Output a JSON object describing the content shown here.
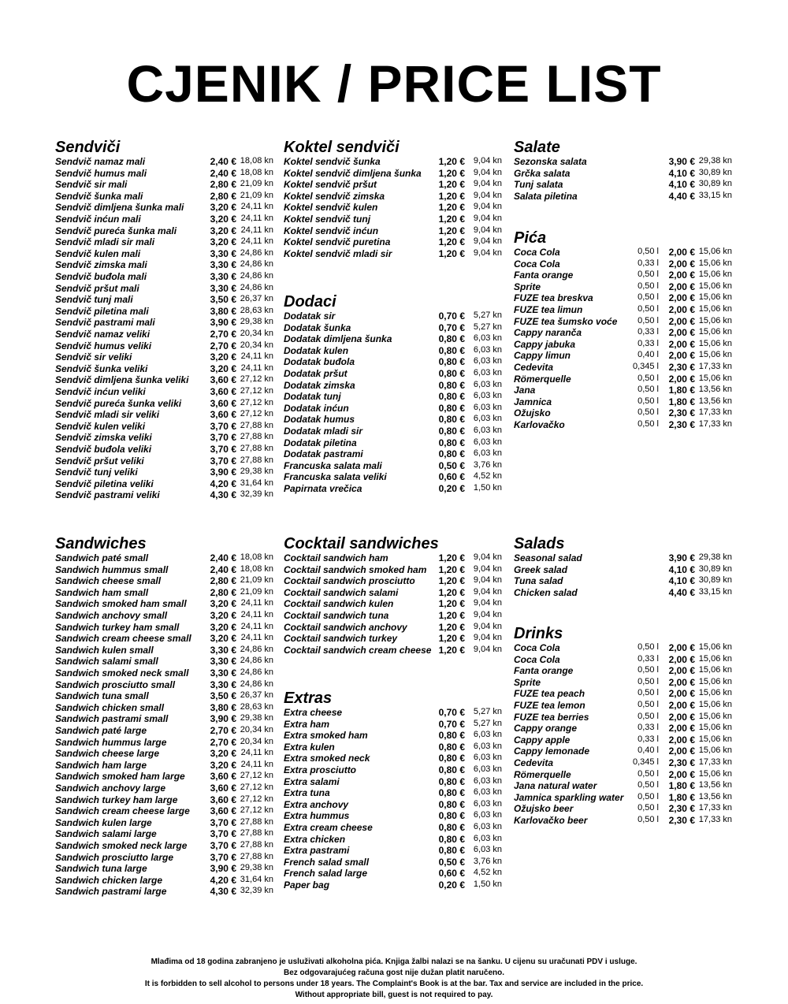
{
  "header": {
    "title": "CJENIK / PRICE LIST"
  },
  "sections": [
    {
      "title": "Sendviči",
      "items": [
        [
          "Sendvič namaz mali",
          "2,40 €",
          "18,08 kn"
        ],
        [
          "Sendvič humus mali",
          "2,40 €",
          "18,08 kn"
        ],
        [
          "Sendvič sir mali",
          "2,80 €",
          "21,09 kn"
        ],
        [
          "Sendvič šunka mali",
          "2,80 €",
          "21,09 kn"
        ],
        [
          "Sendvič dimljena šunka mali",
          "3,20 €",
          "24,11 kn"
        ],
        [
          "Sendvič inćun mali",
          "3,20 €",
          "24,11 kn"
        ],
        [
          "Sendvič pureća šunka mali",
          "3,20 €",
          "24,11 kn"
        ],
        [
          "Sendvič mladi sir mali",
          "3,20 €",
          "24,11 kn"
        ],
        [
          "Sendvič kulen mali",
          "3,30 €",
          "24,86 kn"
        ],
        [
          "Sendvič zimska mali",
          "3,30 €",
          "24,86 kn"
        ],
        [
          "Sendvič buđola mali",
          "3,30 €",
          "24,86 kn"
        ],
        [
          "Sendvič pršut mali",
          "3,30 €",
          "24,86 kn"
        ],
        [
          "Sendvič tunj mali",
          "3,50 €",
          "26,37 kn"
        ],
        [
          "Sendvič piletina mali",
          "3,80 €",
          "28,63 kn"
        ],
        [
          "Sendvič pastrami mali",
          "3,90 €",
          "29,38 kn"
        ],
        [
          "Sendvič namaz veliki",
          "2,70 €",
          "20,34 kn"
        ],
        [
          "Sendvič humus veliki",
          "2,70 €",
          "20,34 kn"
        ],
        [
          "Sendvič sir veliki",
          "3,20 €",
          "24,11 kn"
        ],
        [
          "Sendvič šunka veliki",
          "3,20 €",
          "24,11 kn"
        ],
        [
          "Sendvič dimljena šunka veliki",
          "3,60 €",
          "27,12 kn"
        ],
        [
          "Sendvič inćun veliki",
          "3,60 €",
          "27,12 kn"
        ],
        [
          "Sendvič pureća šunka veliki",
          "3,60 €",
          "27,12 kn"
        ],
        [
          "Sendvič mladi sir veliki",
          "3,60 €",
          "27,12 kn"
        ],
        [
          "Sendvič kulen veliki",
          "3,70 €",
          "27,88 kn"
        ],
        [
          "Sendvič zimska veliki",
          "3,70 €",
          "27,88 kn"
        ],
        [
          "Sendvič buđola veliki",
          "3,70 €",
          "27,88 kn"
        ],
        [
          "Sendvič pršut veliki",
          "3,70 €",
          "27,88 kn"
        ],
        [
          "Sendvič tunj veliki",
          "3,90 €",
          "29,38 kn"
        ],
        [
          "Sendvič piletina veliki",
          "4,20 €",
          "31,64 kn"
        ],
        [
          "Sendvič pastrami veliki",
          "4,30 €",
          "32,39 kn"
        ]
      ]
    },
    {
      "title": "Koktel sendviči",
      "items": [
        [
          "Koktel sendvič šunka",
          "1,20 €",
          "9,04 kn"
        ],
        [
          "Koktel sendvič dimljena šunka",
          "1,20 €",
          "9,04 kn"
        ],
        [
          "Koktel sendvič pršut",
          "1,20 €",
          "9,04 kn"
        ],
        [
          "Koktel sendvič zimska",
          "1,20 €",
          "9,04 kn"
        ],
        [
          "Koktel sendvič kulen",
          "1,20 €",
          "9,04 kn"
        ],
        [
          "Koktel sendvič tunj",
          "1,20 €",
          "9,04 kn"
        ],
        [
          "Koktel sendvič inćun",
          "1,20 €",
          "9,04 kn"
        ],
        [
          "Koktel sendvič puretina",
          "1,20 €",
          "9,04 kn"
        ],
        [
          "Koktel sendvič mladi sir",
          "1,20 €",
          "9,04 kn"
        ]
      ]
    },
    {
      "title": "Dodaci",
      "items": [
        [
          "Dodatak sir",
          "0,70 €",
          "5,27 kn"
        ],
        [
          "Dodatak šunka",
          "0,70 €",
          "5,27 kn"
        ],
        [
          "Dodatak dimljena šunka",
          "0,80 €",
          "6,03 kn"
        ],
        [
          "Dodatak kulen",
          "0,80 €",
          "6,03 kn"
        ],
        [
          "Dodatak buđola",
          "0,80 €",
          "6,03 kn"
        ],
        [
          "Dodatak pršut",
          "0,80 €",
          "6,03 kn"
        ],
        [
          "Dodatak zimska",
          "0,80 €",
          "6,03 kn"
        ],
        [
          "Dodatak tunj",
          "0,80 €",
          "6,03 kn"
        ],
        [
          "Dodatak inćun",
          "0,80 €",
          "6,03 kn"
        ],
        [
          "Dodatak humus",
          "0,80 €",
          "6,03 kn"
        ],
        [
          "Dodatak mladi sir",
          "0,80 €",
          "6,03 kn"
        ],
        [
          "Dodatak piletina",
          "0,80 €",
          "6,03 kn"
        ],
        [
          "Dodatak pastrami",
          "0,80 €",
          "6,03 kn"
        ],
        [
          "Francuska salata mali",
          "0,50 €",
          "3,76 kn"
        ],
        [
          "Francuska salata veliki",
          "0,60 €",
          "4,52 kn"
        ],
        [
          "Papirnata vrečica",
          "0,20 €",
          "1,50 kn"
        ]
      ]
    },
    {
      "title": "Salate",
      "items": [
        [
          "Sezonska salata",
          "3,90 €",
          "29,38 kn"
        ],
        [
          "Grčka salata",
          "4,10 €",
          "30,89 kn"
        ],
        [
          "Tunj salata",
          "4,10 €",
          "30,89 kn"
        ],
        [
          "Salata piletina",
          "4,40 €",
          "33,15 kn"
        ]
      ]
    },
    {
      "title": "Pića",
      "items": [
        [
          "Coca Cola",
          "0,50 l",
          "2,00 €",
          "15,06 kn"
        ],
        [
          "Coca Cola",
          "0,33 l",
          "2,00 €",
          "15,06 kn"
        ],
        [
          "Fanta orange",
          "0,50 l",
          "2,00 €",
          "15,06 kn"
        ],
        [
          "Sprite",
          "0,50 l",
          "2,00 €",
          "15,06 kn"
        ],
        [
          "FUZE tea breskva",
          "0,50 l",
          "2,00 €",
          "15,06 kn"
        ],
        [
          "FUZE tea limun",
          "0,50 l",
          "2,00 €",
          "15,06 kn"
        ],
        [
          "FUZE tea šumsko voće",
          "0,50 l",
          "2,00 €",
          "15,06 kn"
        ],
        [
          "Cappy naranča",
          "0,33 l",
          "2,00 €",
          "15,06 kn"
        ],
        [
          "Cappy jabuka",
          "0,33 l",
          "2,00 €",
          "15,06 kn"
        ],
        [
          "Cappy limun",
          "0,40 l",
          "2,00 €",
          "15,06 kn"
        ],
        [
          "Cedevita",
          "0,345 l",
          "2,30 €",
          "17,33 kn"
        ],
        [
          "Römerquelle",
          "0,50 l",
          "2,00 €",
          "15,06 kn"
        ],
        [
          "Jana",
          "0,50 l",
          "1,80 €",
          "13,56 kn"
        ],
        [
          "Jamnica",
          "0,50 l",
          "1,80 €",
          "13,56 kn"
        ],
        [
          "Ožujsko",
          "0,50 l",
          "2,30 €",
          "17,33 kn"
        ],
        [
          "Karlovačko",
          "0,50 l",
          "2,30 €",
          "17,33 kn"
        ]
      ]
    },
    {
      "title": "Sandwiches",
      "items": [
        [
          "Sandwich paté small",
          "2,40 €",
          "18,08 kn"
        ],
        [
          "Sandwich hummus small",
          "2,40 €",
          "18,08 kn"
        ],
        [
          "Sandwich cheese small",
          "2,80 €",
          "21,09 kn"
        ],
        [
          "Sandwich ham small",
          "2,80 €",
          "21,09 kn"
        ],
        [
          "Sandwich smoked ham small",
          "3,20 €",
          "24,11 kn"
        ],
        [
          "Sandwich anchovy small",
          "3,20 €",
          "24,11 kn"
        ],
        [
          "Sandwich turkey ham small",
          "3,20 €",
          "24,11 kn"
        ],
        [
          "Sandwich cream cheese small",
          "3,20 €",
          "24,11 kn"
        ],
        [
          "Sandwich kulen small",
          "3,30 €",
          "24,86 kn"
        ],
        [
          "Sandwich salami small",
          "3,30 €",
          "24,86 kn"
        ],
        [
          "Sandwich smoked neck small",
          "3,30 €",
          "24,86 kn"
        ],
        [
          "Sandwich prosciutto small",
          "3,30 €",
          "24,86 kn"
        ],
        [
          "Sandwich tuna small",
          "3,50 €",
          "26,37 kn"
        ],
        [
          "Sandwich chicken small",
          "3,80 €",
          "28,63 kn"
        ],
        [
          "Sandwich pastrami small",
          "3,90 €",
          "29,38 kn"
        ],
        [
          "Sandwich paté large",
          "2,70 €",
          "20,34 kn"
        ],
        [
          "Sandwich hummus large",
          "2,70 €",
          "20,34 kn"
        ],
        [
          "Sandwich cheese large",
          "3,20 €",
          "24,11 kn"
        ],
        [
          "Sandwich ham large",
          "3,20 €",
          "24,11 kn"
        ],
        [
          "Sandwich smoked ham large",
          "3,60 €",
          "27,12 kn"
        ],
        [
          "Sandwich anchovy large",
          "3,60 €",
          "27,12 kn"
        ],
        [
          "Sandwich turkey ham large",
          "3,60 €",
          "27,12 kn"
        ],
        [
          "Sandwich cream cheese large",
          "3,60 €",
          "27,12 kn"
        ],
        [
          "Sandwich kulen large",
          "3,70 €",
          "27,88 kn"
        ],
        [
          "Sandwich salami large",
          "3,70 €",
          "27,88 kn"
        ],
        [
          "Sandwich smoked neck large",
          "3,70 €",
          "27,88 kn"
        ],
        [
          "Sandwich prosciutto large",
          "3,70 €",
          "27,88 kn"
        ],
        [
          "Sandwich tuna large",
          "3,90 €",
          "29,38 kn"
        ],
        [
          "Sandwich chicken large",
          "4,20 €",
          "31,64 kn"
        ],
        [
          "Sandwich pastrami large",
          "4,30 €",
          "32,39 kn"
        ]
      ]
    },
    {
      "title": "Cocktail sandwiches",
      "items": [
        [
          "Cocktail sandwich ham",
          "1,20 €",
          "9,04 kn"
        ],
        [
          "Cocktail sandwich smoked ham",
          "1,20 €",
          "9,04 kn"
        ],
        [
          "Cocktail sandwich prosciutto",
          "1,20 €",
          "9,04 kn"
        ],
        [
          "Cocktail sandwich salami",
          "1,20 €",
          "9,04 kn"
        ],
        [
          "Cocktail sandwich kulen",
          "1,20 €",
          "9,04 kn"
        ],
        [
          "Cocktail sandwich tuna",
          "1,20 €",
          "9,04 kn"
        ],
        [
          "Cocktail sandwich anchovy",
          "1,20 €",
          "9,04 kn"
        ],
        [
          "Cocktail sandwich turkey",
          "1,20 €",
          "9,04 kn"
        ],
        [
          "Cocktail sandwich cream cheese",
          "1,20 €",
          "9,04 kn"
        ]
      ]
    },
    {
      "title": "Extras",
      "items": [
        [
          "Extra cheese",
          "0,70 €",
          "5,27 kn"
        ],
        [
          "Extra ham",
          "0,70 €",
          "5,27 kn"
        ],
        [
          "Extra smoked ham",
          "0,80 €",
          "6,03 kn"
        ],
        [
          "Extra kulen",
          "0,80 €",
          "6,03 kn"
        ],
        [
          "Extra smoked neck",
          "0,80 €",
          "6,03 kn"
        ],
        [
          "Extra prosciutto",
          "0,80 €",
          "6,03 kn"
        ],
        [
          "Extra salami",
          "0,80 €",
          "6,03 kn"
        ],
        [
          "Extra tuna",
          "0,80 €",
          "6,03 kn"
        ],
        [
          "Extra anchovy",
          "0,80 €",
          "6,03 kn"
        ],
        [
          "Extra hummus",
          "0,80 €",
          "6,03 kn"
        ],
        [
          "Extra cream cheese",
          "0,80 €",
          "6,03 kn"
        ],
        [
          "Extra chicken",
          "0,80 €",
          "6,03 kn"
        ],
        [
          "Extra pastrami",
          "0,80 €",
          "6,03 kn"
        ],
        [
          "French salad small",
          "0,50 €",
          "3,76 kn"
        ],
        [
          "French salad large",
          "0,60 €",
          "4,52 kn"
        ],
        [
          "Paper bag",
          "0,20 €",
          "1,50 kn"
        ]
      ]
    },
    {
      "title": "Salads",
      "items": [
        [
          "Seasonal salad",
          "3,90 €",
          "29,38 kn"
        ],
        [
          "Greek salad",
          "4,10 €",
          "30,89 kn"
        ],
        [
          "Tuna salad",
          "4,10 €",
          "30,89 kn"
        ],
        [
          "Chicken salad",
          "4,40 €",
          "33,15 kn"
        ]
      ]
    },
    {
      "title": "Drinks",
      "items": [
        [
          "Coca Cola",
          "0,50 l",
          "2,00 €",
          "15,06 kn"
        ],
        [
          "Coca Cola",
          "0,33 l",
          "2,00 €",
          "15,06 kn"
        ],
        [
          "Fanta orange",
          "0,50 l",
          "2,00 €",
          "15,06 kn"
        ],
        [
          "Sprite",
          "0,50 l",
          "2,00 €",
          "15,06 kn"
        ],
        [
          "FUZE tea peach",
          "0,50 l",
          "2,00 €",
          "15,06 kn"
        ],
        [
          "FUZE tea lemon",
          "0,50 l",
          "2,00 €",
          "15,06 kn"
        ],
        [
          "FUZE tea berries",
          "0,50 l",
          "2,00 €",
          "15,06 kn"
        ],
        [
          "Cappy orange",
          "0,33 l",
          "2,00 €",
          "15,06 kn"
        ],
        [
          "Cappy apple",
          "0,33 l",
          "2,00 €",
          "15,06 kn"
        ],
        [
          "Cappy lemonade",
          "0,40 l",
          "2,00 €",
          "15,06 kn"
        ],
        [
          "Cedevita",
          "0,345 l",
          "2,30 €",
          "17,33 kn"
        ],
        [
          "Römerquelle",
          "0,50 l",
          "2,00 €",
          "15,06 kn"
        ],
        [
          "Jana natural water",
          "0,50 l",
          "1,80 €",
          "13,56 kn"
        ],
        [
          "Jamnica sparkling water",
          "0,50 l",
          "1,80 €",
          "13,56 kn"
        ],
        [
          "Ožujsko beer",
          "0,50 l",
          "2,30 €",
          "17,33 kn"
        ],
        [
          "Karlovačko beer",
          "0,50 l",
          "2,30 €",
          "17,33 kn"
        ]
      ]
    }
  ],
  "footer": [
    "Mlađima od 18 godina zabranjeno je usluživati alkoholna pića. Knjiga žalbi nalazi se na šanku. U cijenu su uračunati PDV i usluge.",
    "Bez odgovarajućeg računa gost nije dužan platit naručeno.",
    "It is forbidden to sell alcohol to persons under 18 years. The Complaint's Book is at the bar. Tax and service are included in the price.",
    "Without appropriate bill, guest is not required to pay."
  ]
}
